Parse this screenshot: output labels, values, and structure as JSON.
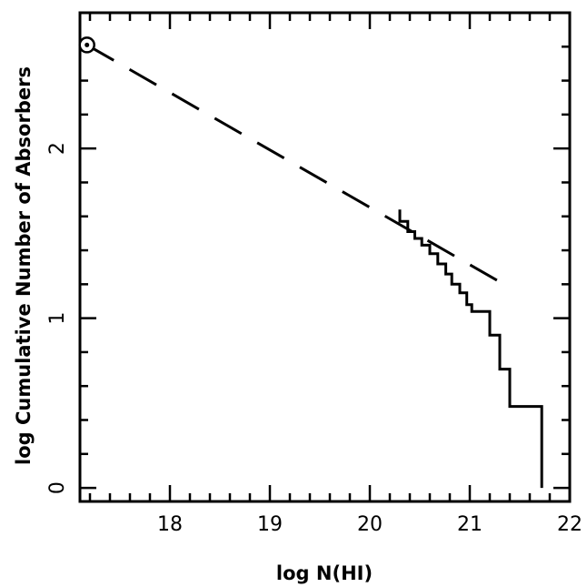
{
  "chart_data": {
    "type": "line",
    "title": "",
    "xlabel": "log N(HI)",
    "ylabel": "log Cumulative Number of Absorbers",
    "xlim": [
      17.1,
      22.0
    ],
    "ylim": [
      -0.08,
      2.8
    ],
    "x_major_ticks": [
      18,
      19,
      20,
      21,
      22
    ],
    "x_tick_labels": [
      "18",
      "19",
      "20",
      "21",
      "22"
    ],
    "x_minor_step": 0.2,
    "y_major_ticks": [
      0,
      1,
      2
    ],
    "y_tick_labels": [
      "0",
      "1",
      "2"
    ],
    "y_minor_step": 0.2,
    "grid": false,
    "series": [
      {
        "style": "dashed",
        "x": [
          17.17,
          21.4
        ],
        "y": [
          2.61,
          1.18
        ]
      },
      {
        "style": "step",
        "x": [
          20.3,
          20.3,
          20.38,
          20.38,
          20.45,
          20.45,
          20.52,
          20.52,
          20.6,
          20.6,
          20.68,
          20.68,
          20.76,
          20.76,
          20.82,
          20.82,
          20.9,
          20.9,
          20.97,
          20.97,
          21.02,
          21.02,
          21.2,
          21.2,
          21.3,
          21.3,
          21.4,
          21.4,
          21.72,
          21.72
        ],
        "y": [
          1.64,
          1.57,
          1.57,
          1.51,
          1.51,
          1.47,
          1.47,
          1.43,
          1.43,
          1.38,
          1.38,
          1.32,
          1.32,
          1.26,
          1.26,
          1.2,
          1.2,
          1.15,
          1.15,
          1.08,
          1.08,
          1.04,
          1.04,
          0.9,
          0.9,
          0.7,
          0.7,
          0.48,
          0.48,
          0.0
        ]
      }
    ],
    "marker": {
      "symbol": "circled-dot",
      "x": 17.17,
      "y": 2.61
    }
  }
}
